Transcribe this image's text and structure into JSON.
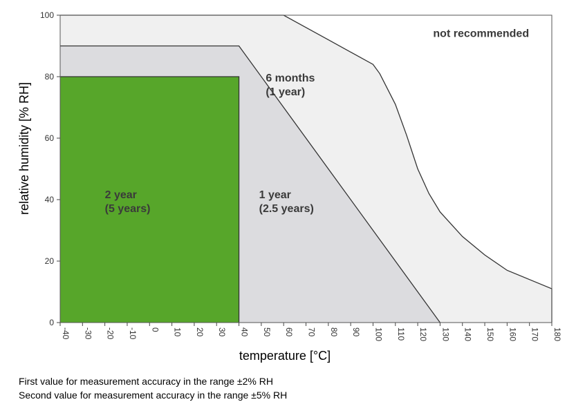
{
  "chart_data": {
    "type": "area",
    "xlabel": "temperature [°C]",
    "ylabel": "relative humidity [% RH]",
    "xlim": [
      -40,
      180
    ],
    "ylim": [
      0,
      100
    ],
    "x_ticks": [
      -40,
      -30,
      -20,
      -10,
      0,
      10,
      20,
      30,
      40,
      50,
      60,
      70,
      80,
      90,
      100,
      110,
      120,
      130,
      140,
      150,
      160,
      170,
      180
    ],
    "x_tick_labels": [
      "-40",
      "-30",
      "-20",
      "-10",
      "0",
      "10",
      "20",
      "30",
      "40",
      "50",
      "60",
      "70",
      "80",
      "90",
      "100",
      "110",
      "120",
      "130",
      "140",
      "150",
      "160",
      "170",
      "180"
    ],
    "y_ticks": [
      0,
      20,
      40,
      60,
      80,
      100
    ],
    "y_tick_labels": [
      "0",
      "20",
      "40",
      "60",
      "80",
      "100"
    ],
    "regions": [
      {
        "name": "6 months zone",
        "line1": "6 months",
        "line2": "(1 year)",
        "label_at": [
          52,
          78
        ],
        "color": "#f0f0f0",
        "boundary": [
          [
            -40,
            100
          ],
          [
            60,
            100
          ],
          [
            70,
            96
          ],
          [
            80,
            92
          ],
          [
            90,
            88
          ],
          [
            100,
            84
          ],
          [
            103,
            81
          ],
          [
            110,
            71
          ],
          [
            115,
            61
          ],
          [
            120,
            50
          ],
          [
            125,
            42
          ],
          [
            130,
            36
          ],
          [
            140,
            28
          ],
          [
            150,
            22
          ],
          [
            160,
            17
          ],
          [
            170,
            14
          ],
          [
            180,
            11
          ],
          [
            180,
            0
          ]
        ]
      },
      {
        "name": "1 year zone",
        "line1": "1 year",
        "line2": "(2.5 years)",
        "label_at": [
          49,
          40
        ],
        "color": "#dcdcdf",
        "boundary": [
          [
            -40,
            90
          ],
          [
            40,
            90
          ],
          [
            130,
            0
          ]
        ]
      },
      {
        "name": "2 year zone",
        "line1": "2 year",
        "line2": "(5 years)",
        "label_at": [
          -20,
          40
        ],
        "color": "#57a62a",
        "boundary": [
          [
            -40,
            80
          ],
          [
            40,
            80
          ],
          [
            40,
            0
          ]
        ]
      }
    ],
    "annotations": [
      {
        "text": "not recommended",
        "at": [
          130,
          94
        ]
      }
    ]
  },
  "footnotes": [
    "First value for measurement accuracy in the range ±2% RH",
    "Second value for measurement accuracy in the range ±5% RH"
  ]
}
